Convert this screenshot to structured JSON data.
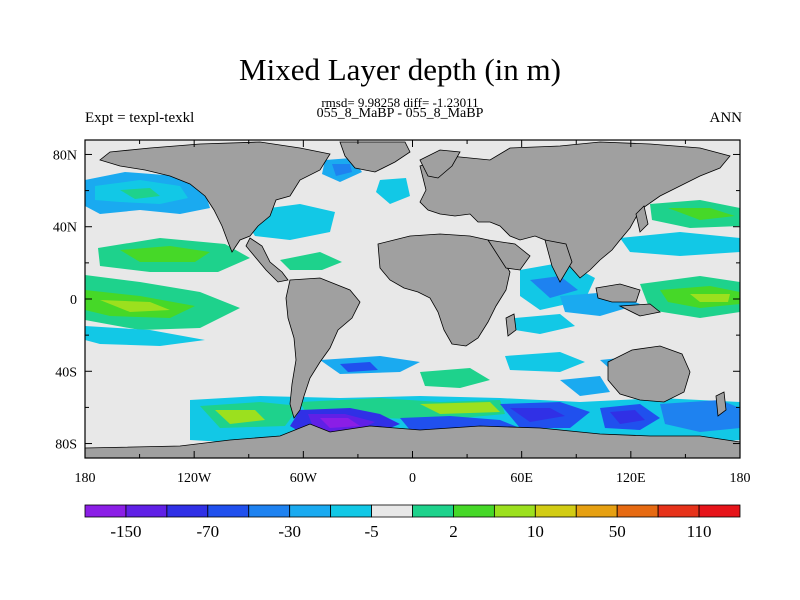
{
  "header": {
    "title": "Mixed Layer depth (in m)",
    "stats": "rmsd= 9.98258 diff= -1.23011",
    "cases": "055_8_MaBP - 055_8_MaBP",
    "left_label": "Expt = texpl-texkl",
    "right_label": "ANN"
  },
  "axes": {
    "lat_labels": [
      "80N",
      "40N",
      "0",
      "40S",
      "80S"
    ],
    "lon_labels": [
      "180",
      "120W",
      "60W",
      "0",
      "60E",
      "120E",
      "180"
    ],
    "lat_values": [
      80,
      40,
      0,
      -40,
      -80
    ],
    "lon_values": [
      -180,
      -120,
      -60,
      0,
      60,
      120,
      180
    ]
  },
  "colorbar": {
    "colors": [
      "#8b1ee6",
      "#6020e6",
      "#3030e6",
      "#2050ee",
      "#1e82f0",
      "#1aaaf0",
      "#12c8e6",
      "#e8e8e8",
      "#1ed28c",
      "#46d828",
      "#9ce01e",
      "#d2cc14",
      "#e6a012",
      "#e66a12",
      "#e6321a",
      "#e6141a"
    ],
    "labels": [
      "-150",
      "-70",
      "-30",
      "-5",
      "2",
      "10",
      "50",
      "110"
    ]
  },
  "colors": {
    "land": "#a0a0a0",
    "ocean_zero": "#e8e8e8",
    "frame": "#000000"
  }
}
